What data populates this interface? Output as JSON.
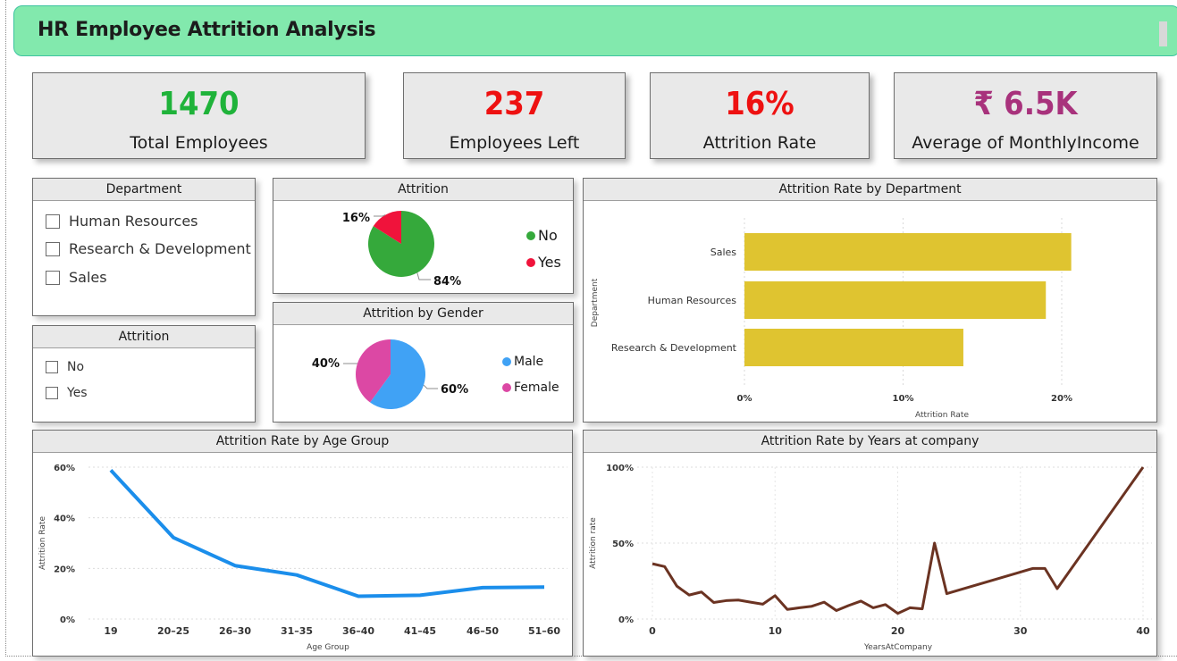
{
  "header": {
    "title": "HR Employee Attrition Analysis"
  },
  "kpis": [
    {
      "value": "1470",
      "label": "Total Employees",
      "color": "#1fb33a"
    },
    {
      "value": "237",
      "label": "Employees Left",
      "color": "#ee1111"
    },
    {
      "value": "16%",
      "label": "Attrition Rate",
      "color": "#ee1111"
    },
    {
      "value": "₹ 6.5K",
      "label": "Average of MonthlyIncome",
      "color": "#a8327c"
    }
  ],
  "slicers": {
    "department": {
      "title": "Department",
      "items": [
        "Human Resources",
        "Research & Development",
        "Sales"
      ]
    },
    "attrition": {
      "title": "Attrition",
      "items": [
        "No",
        "Yes"
      ]
    }
  },
  "colors": {
    "no": "#35a93b",
    "yes": "#f0133b",
    "male": "#40a2f5",
    "female": "#dc48a4",
    "bar": "#dfc430",
    "age_line": "#1b8eeb",
    "years_line": "#6b3322"
  },
  "chart_data": [
    {
      "type": "pie",
      "title": "Attrition",
      "slices": [
        {
          "name": "No",
          "value": 84,
          "label": "84%"
        },
        {
          "name": "Yes",
          "value": 16,
          "label": "16%"
        }
      ]
    },
    {
      "type": "pie",
      "title": "Attrition by Gender",
      "slices": [
        {
          "name": "Male",
          "value": 60,
          "label": "60%"
        },
        {
          "name": "Female",
          "value": 40,
          "label": "40%"
        }
      ]
    },
    {
      "type": "bar",
      "orientation": "horizontal",
      "title": "Attrition Rate by Department",
      "categories": [
        "Sales",
        "Human Resources",
        "Research & Development"
      ],
      "values": [
        20.6,
        19.0,
        13.8
      ],
      "xlabel": "Attrition Rate",
      "ylabel": "Department",
      "xlim": [
        0,
        22
      ],
      "ticks": [
        "0%",
        "10%",
        "20%"
      ],
      "grid": true
    },
    {
      "type": "line",
      "title": "Attrition Rate by Age Group",
      "categories": [
        "19",
        "20–25",
        "26–30",
        "31–35",
        "36–40",
        "41–45",
        "46–50",
        "51–60"
      ],
      "values": [
        58.8,
        32.2,
        21.1,
        17.4,
        9.0,
        9.4,
        12.4,
        12.6
      ],
      "xlabel": "Age Group",
      "ylabel": "Attrition Rate",
      "ylim": [
        0,
        60
      ],
      "ticks": [
        "0%",
        "20%",
        "40%",
        "60%"
      ],
      "grid": true
    },
    {
      "type": "line",
      "title": "Attrition Rate by Years at company",
      "x": [
        0,
        1,
        2,
        3,
        4,
        5,
        6,
        7,
        8,
        9,
        10,
        11,
        12,
        13,
        14,
        15,
        16,
        17,
        18,
        19,
        20,
        21,
        22,
        23,
        24,
        31,
        32,
        33,
        40
      ],
      "values": [
        36.4,
        34.5,
        21.6,
        15.8,
        17.8,
        10.9,
        12.1,
        12.5,
        11.1,
        9.8,
        15.4,
        6.3,
        7.4,
        8.4,
        11.1,
        5.6,
        8.9,
        11.8,
        7.4,
        9.5,
        3.7,
        7.4,
        6.7,
        50.0,
        16.7,
        33.3,
        33.3,
        20.0,
        100.0
      ],
      "xlabel": "YearsAtCompany",
      "ylabel": "Attrition rate",
      "xlim": [
        0,
        40
      ],
      "ylim": [
        0,
        100
      ],
      "xticks": [
        "0",
        "10",
        "20",
        "30",
        "40"
      ],
      "ticks": [
        "0%",
        "50%",
        "100%"
      ],
      "grid": true
    }
  ]
}
